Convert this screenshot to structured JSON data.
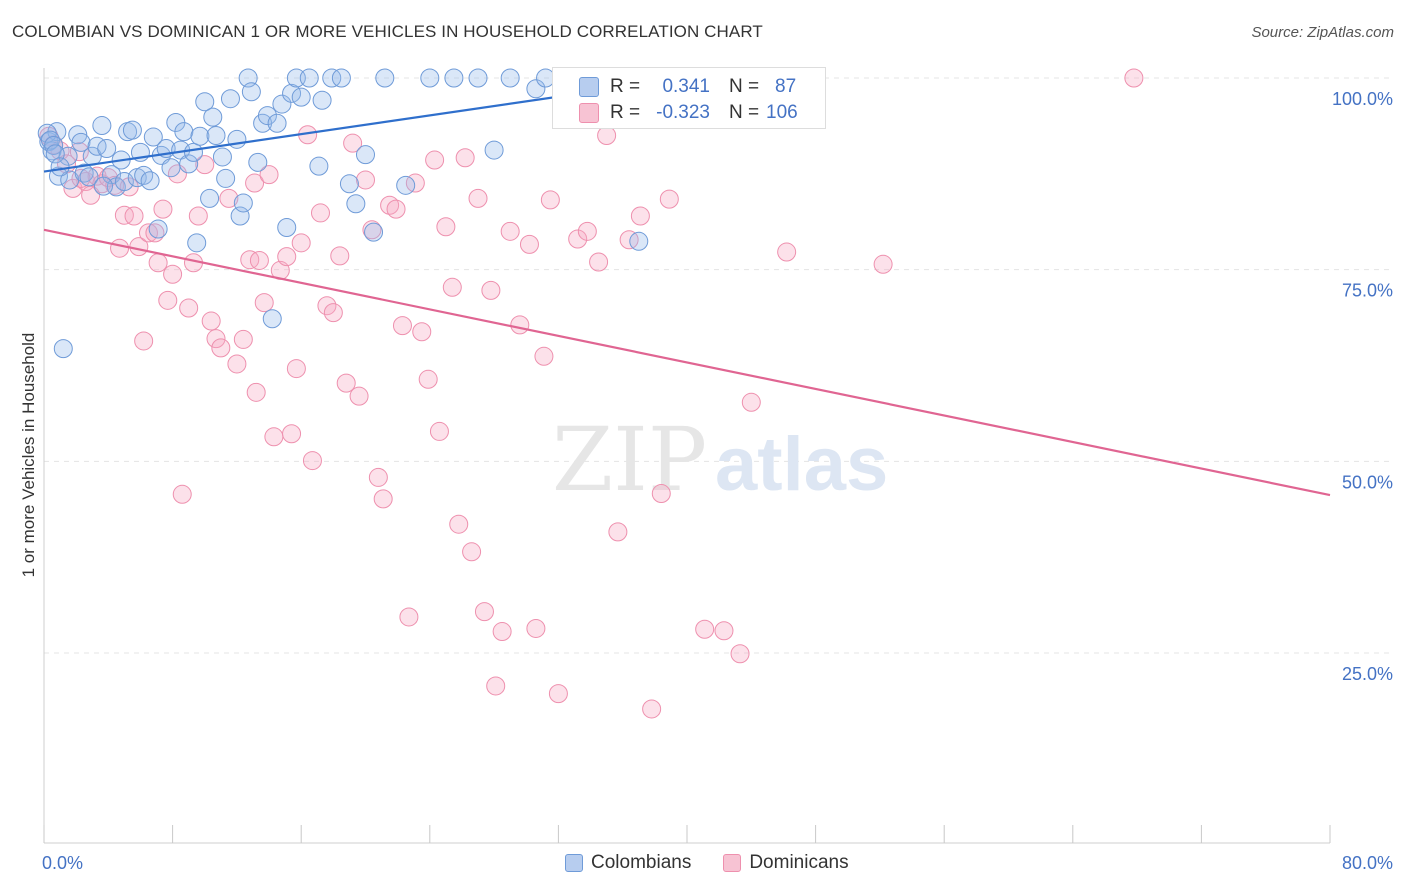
{
  "title": "COLOMBIAN VS DOMINICAN 1 OR MORE VEHICLES IN HOUSEHOLD CORRELATION CHART",
  "source": "Source: ZipAtlas.com",
  "watermark": {
    "zip": "ZIP",
    "atlas": "atlas"
  },
  "stats": {
    "r_label": "R =",
    "n_label": "N =",
    "colombians": {
      "r": "0.341",
      "n": "87"
    },
    "dominicans": {
      "r": "-0.323",
      "n": "106"
    }
  },
  "legend": {
    "colombians": "Colombians",
    "dominicans": "Dominicans"
  },
  "chart_data": {
    "type": "scatter",
    "xlabel": "",
    "ylabel": "1 or more Vehicles in Household",
    "xlim": [
      0,
      80
    ],
    "ylim": [
      0,
      104
    ],
    "x_tick_labels": [
      "0.0%",
      "80.0%"
    ],
    "y_ticks": [
      25,
      50,
      75,
      100
    ],
    "y_tick_labels": [
      "25.0%",
      "50.0%",
      "75.0%",
      "100.0%"
    ],
    "grid": true,
    "colors": {
      "colombians": "#6f9bd8",
      "dominicans": "#ee90ae",
      "colombians_line": "#2f6fcc",
      "dominicans_line": "#e06592",
      "tick_label": "#4472c4"
    },
    "series": [
      {
        "name": "Colombians",
        "trend": [
          [
            0,
            87.8
          ],
          [
            40,
            100
          ]
        ],
        "points": [
          [
            0.3,
            91.7
          ],
          [
            0.5,
            90.5
          ],
          [
            0.8,
            93
          ],
          [
            0.9,
            87.2
          ],
          [
            1.2,
            64.7
          ],
          [
            1.5,
            89.8
          ],
          [
            1.6,
            86.7
          ],
          [
            2.1,
            92.6
          ],
          [
            2.3,
            91.6
          ],
          [
            2.5,
            87.6
          ],
          [
            2.8,
            87.1
          ],
          [
            3.0,
            89.8
          ],
          [
            3.3,
            91.1
          ],
          [
            3.6,
            93.8
          ],
          [
            3.9,
            90.8
          ],
          [
            4.2,
            87.4
          ],
          [
            4.5,
            85.8
          ],
          [
            4.8,
            89.3
          ],
          [
            5.0,
            86.5
          ],
          [
            5.2,
            93.0
          ],
          [
            5.5,
            93.2
          ],
          [
            5.8,
            87.0
          ],
          [
            6.0,
            90.3
          ],
          [
            6.2,
            87.3
          ],
          [
            6.6,
            86.6
          ],
          [
            6.8,
            92.3
          ],
          [
            7.1,
            80.3
          ],
          [
            7.3,
            89.9
          ],
          [
            7.6,
            90.8
          ],
          [
            7.9,
            88.3
          ],
          [
            8.2,
            94.2
          ],
          [
            8.5,
            90.6
          ],
          [
            8.7,
            93.0
          ],
          [
            9.0,
            88.8
          ],
          [
            9.3,
            90.3
          ],
          [
            9.5,
            78.5
          ],
          [
            9.7,
            92.4
          ],
          [
            10.0,
            96.9
          ],
          [
            10.3,
            84.3
          ],
          [
            10.5,
            94.9
          ],
          [
            10.7,
            92.5
          ],
          [
            11.1,
            89.7
          ],
          [
            11.3,
            86.9
          ],
          [
            11.6,
            97.3
          ],
          [
            12.0,
            92.0
          ],
          [
            12.2,
            82.0
          ],
          [
            12.4,
            83.7
          ],
          [
            12.7,
            100
          ],
          [
            12.9,
            98.2
          ],
          [
            13.3,
            89.0
          ],
          [
            13.6,
            94.1
          ],
          [
            13.9,
            95.1
          ],
          [
            14.2,
            68.6
          ],
          [
            14.5,
            94.1
          ],
          [
            14.8,
            96.6
          ],
          [
            15.1,
            80.5
          ],
          [
            15.4,
            98.0
          ],
          [
            15.7,
            100
          ],
          [
            16.0,
            97.5
          ],
          [
            16.5,
            100
          ],
          [
            17.1,
            88.5
          ],
          [
            17.3,
            97.1
          ],
          [
            17.9,
            100
          ],
          [
            18.5,
            100
          ],
          [
            19.0,
            86.2
          ],
          [
            19.4,
            83.6
          ],
          [
            20.0,
            90.0
          ],
          [
            20.5,
            79.9
          ],
          [
            21.2,
            100
          ],
          [
            22.5,
            86.0
          ],
          [
            24.0,
            100
          ],
          [
            25.5,
            100
          ],
          [
            27.0,
            100
          ],
          [
            28.0,
            90.6
          ],
          [
            29.0,
            100
          ],
          [
            30.6,
            98.6
          ],
          [
            31.2,
            100
          ],
          [
            33.0,
            100
          ],
          [
            34.0,
            100
          ],
          [
            35.5,
            97.4
          ],
          [
            37.0,
            78.7
          ],
          [
            0.2,
            92.8
          ],
          [
            0.4,
            91.9
          ],
          [
            0.6,
            91.2
          ],
          [
            0.7,
            90.1
          ],
          [
            1.0,
            88.4
          ],
          [
            3.7,
            85.9
          ]
        ]
      },
      {
        "name": "Dominicans",
        "trend": [
          [
            0,
            80.2
          ],
          [
            80,
            45.6
          ]
        ],
        "points": [
          [
            0.3,
            92.4
          ],
          [
            0.6,
            91.3
          ],
          [
            1.0,
            90.5
          ],
          [
            1.4,
            88.8
          ],
          [
            1.8,
            85.6
          ],
          [
            2.2,
            90.4
          ],
          [
            2.6,
            86.5
          ],
          [
            2.9,
            84.7
          ],
          [
            3.3,
            87.2
          ],
          [
            3.6,
            86.2
          ],
          [
            4.0,
            87.0
          ],
          [
            4.4,
            86.0
          ],
          [
            4.7,
            77.8
          ],
          [
            5.0,
            82.1
          ],
          [
            5.3,
            85.8
          ],
          [
            5.6,
            82.0
          ],
          [
            5.9,
            78.0
          ],
          [
            6.2,
            65.7
          ],
          [
            6.5,
            79.8
          ],
          [
            6.9,
            79.8
          ],
          [
            7.1,
            75.9
          ],
          [
            7.4,
            82.9
          ],
          [
            7.7,
            71.0
          ],
          [
            8.0,
            74.4
          ],
          [
            8.3,
            87.5
          ],
          [
            8.6,
            45.7
          ],
          [
            9.0,
            70.0
          ],
          [
            9.3,
            75.9
          ],
          [
            9.6,
            82.0
          ],
          [
            10.0,
            88.7
          ],
          [
            10.4,
            68.3
          ],
          [
            10.7,
            66.0
          ],
          [
            11.0,
            64.8
          ],
          [
            11.5,
            84.3
          ],
          [
            12.0,
            62.7
          ],
          [
            12.4,
            65.9
          ],
          [
            12.8,
            76.3
          ],
          [
            13.1,
            86.3
          ],
          [
            13.4,
            76.2
          ],
          [
            13.7,
            70.7
          ],
          [
            14.0,
            87.4
          ],
          [
            14.3,
            53.2
          ],
          [
            14.7,
            74.9
          ],
          [
            15.1,
            76.7
          ],
          [
            15.4,
            53.6
          ],
          [
            15.7,
            62.1
          ],
          [
            16.0,
            78.5
          ],
          [
            16.4,
            92.6
          ],
          [
            16.7,
            50.1
          ],
          [
            17.2,
            82.4
          ],
          [
            17.6,
            70.3
          ],
          [
            18.0,
            69.4
          ],
          [
            18.4,
            76.8
          ],
          [
            18.8,
            60.2
          ],
          [
            19.2,
            91.5
          ],
          [
            19.6,
            58.5
          ],
          [
            20.0,
            86.7
          ],
          [
            20.4,
            80.2
          ],
          [
            20.8,
            47.9
          ],
          [
            21.1,
            45.1
          ],
          [
            21.5,
            83.4
          ],
          [
            21.9,
            82.9
          ],
          [
            22.3,
            67.7
          ],
          [
            22.7,
            29.7
          ],
          [
            23.1,
            86.3
          ],
          [
            23.5,
            66.9
          ],
          [
            23.9,
            60.7
          ],
          [
            24.3,
            89.3
          ],
          [
            24.6,
            53.9
          ],
          [
            25.0,
            80.6
          ],
          [
            25.4,
            72.7
          ],
          [
            25.8,
            41.8
          ],
          [
            26.2,
            89.6
          ],
          [
            26.6,
            38.2
          ],
          [
            27.0,
            84.3
          ],
          [
            27.4,
            30.4
          ],
          [
            27.8,
            72.3
          ],
          [
            28.1,
            20.7
          ],
          [
            28.5,
            27.8
          ],
          [
            29.0,
            80.0
          ],
          [
            29.6,
            67.8
          ],
          [
            30.2,
            78.3
          ],
          [
            30.6,
            28.2
          ],
          [
            31.1,
            63.7
          ],
          [
            31.5,
            84.1
          ],
          [
            32.0,
            19.7
          ],
          [
            32.6,
            99.7
          ],
          [
            33.2,
            79.0
          ],
          [
            33.8,
            80.0
          ],
          [
            34.5,
            76.0
          ],
          [
            35.0,
            92.5
          ],
          [
            35.7,
            40.8
          ],
          [
            36.4,
            78.9
          ],
          [
            37.1,
            82.0
          ],
          [
            37.8,
            17.7
          ],
          [
            38.4,
            45.8
          ],
          [
            38.9,
            84.2
          ],
          [
            41.1,
            28.1
          ],
          [
            42.3,
            27.9
          ],
          [
            43.3,
            24.9
          ],
          [
            44.0,
            57.7
          ],
          [
            46.2,
            77.3
          ],
          [
            52.2,
            75.7
          ],
          [
            67.8,
            100.0
          ],
          [
            2.3,
            86.9
          ],
          [
            13.2,
            59.0
          ]
        ]
      }
    ]
  }
}
